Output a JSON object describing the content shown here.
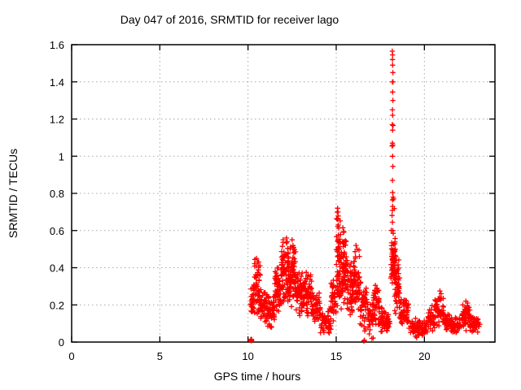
{
  "chart_data": {
    "type": "scatter",
    "title": "Day 047 of 2016, SRMTID for receiver lago",
    "xlabel": "GPS time / hours",
    "ylabel": "SRMTID / TECUs",
    "xlim": [
      0,
      24
    ],
    "ylim": [
      0,
      1.6
    ],
    "xticks": [
      [
        0,
        "0"
      ],
      [
        5,
        "5"
      ],
      [
        10,
        "10"
      ],
      [
        15,
        "15"
      ],
      [
        20,
        "20"
      ]
    ],
    "yticks": [
      [
        0,
        "0"
      ],
      [
        0.2,
        "0.2"
      ],
      [
        0.4,
        "0.4"
      ],
      [
        0.6,
        "0.6"
      ],
      [
        0.8,
        "0.8"
      ],
      [
        1,
        "1"
      ],
      [
        1.2,
        "1.2"
      ],
      [
        1.4,
        "1.4"
      ],
      [
        1.6,
        "1.6"
      ]
    ],
    "grid": true,
    "grid_color": "#a8a8a8",
    "border_color": "#000000",
    "legend_position": "none",
    "marker": {
      "shape": "plus",
      "color": "#ff0000",
      "size": 7
    },
    "data_time_range": [
      10.15,
      23.15
    ],
    "series": [
      {
        "name": "SRMTID",
        "color": "#ff0000",
        "envelope_bands_comment": "each band = [t_start_h, t_end_h, y_min_TECU, y_max_TECU, n_points] read from the scatter envelope",
        "envelope_bands": [
          [
            10.15,
            10.35,
            0.13,
            0.32,
            28
          ],
          [
            10.35,
            10.7,
            0.12,
            0.46,
            52
          ],
          [
            10.7,
            11.1,
            0.08,
            0.3,
            48
          ],
          [
            11.1,
            11.5,
            0.07,
            0.28,
            48
          ],
          [
            11.5,
            11.9,
            0.12,
            0.44,
            58
          ],
          [
            11.9,
            12.3,
            0.18,
            0.57,
            75
          ],
          [
            12.3,
            12.7,
            0.18,
            0.55,
            75
          ],
          [
            12.7,
            13.1,
            0.13,
            0.4,
            58
          ],
          [
            13.1,
            13.6,
            0.12,
            0.38,
            58
          ],
          [
            13.6,
            14.1,
            0.08,
            0.28,
            48
          ],
          [
            14.1,
            14.7,
            0.04,
            0.19,
            48
          ],
          [
            14.7,
            15.0,
            0.1,
            0.36,
            38
          ],
          [
            15.0,
            15.25,
            0.18,
            0.73,
            65
          ],
          [
            15.25,
            15.6,
            0.17,
            0.62,
            65
          ],
          [
            15.6,
            15.95,
            0.13,
            0.46,
            52
          ],
          [
            15.95,
            16.35,
            0.14,
            0.52,
            58
          ],
          [
            16.35,
            16.8,
            0.06,
            0.38,
            45
          ],
          [
            16.8,
            17.1,
            0.04,
            0.22,
            32
          ],
          [
            17.1,
            17.45,
            0.06,
            0.31,
            42
          ],
          [
            17.45,
            17.75,
            0.05,
            0.2,
            28
          ],
          [
            17.75,
            18.05,
            0.04,
            0.16,
            28
          ],
          [
            18.1,
            18.35,
            0.28,
            0.56,
            55
          ],
          [
            18.12,
            18.3,
            0.58,
            0.8,
            6
          ],
          [
            18.3,
            18.6,
            0.12,
            0.46,
            48
          ],
          [
            18.6,
            19.1,
            0.06,
            0.25,
            48
          ],
          [
            19.1,
            20.2,
            0.02,
            0.13,
            85
          ],
          [
            20.2,
            20.6,
            0.05,
            0.2,
            38
          ],
          [
            20.6,
            21.1,
            0.08,
            0.28,
            48
          ],
          [
            21.1,
            21.5,
            0.05,
            0.18,
            36
          ],
          [
            21.5,
            22.1,
            0.04,
            0.14,
            52
          ],
          [
            22.1,
            22.6,
            0.06,
            0.22,
            52
          ],
          [
            22.6,
            23.15,
            0.04,
            0.14,
            46
          ]
        ],
        "explicit_points_comment": "distinct readable points: start-blob at 10.18h on axis, near-zero points at 16.6h and 17.1h, the tall 18.2h spike up to 1.565 TECU, and local envelope maxima",
        "explicit_points": [
          [
            10.15,
            0.01
          ],
          [
            10.16,
            0.012
          ],
          [
            10.17,
            0.008
          ],
          [
            10.17,
            0.014
          ],
          [
            10.18,
            0.01
          ],
          [
            10.19,
            0.015
          ],
          [
            10.19,
            0.007
          ],
          [
            10.2,
            0.012
          ],
          [
            10.21,
            0.01
          ],
          [
            10.18,
            0.013
          ],
          [
            16.57,
            0.005
          ],
          [
            16.6,
            0.01
          ],
          [
            16.62,
            0.06
          ],
          [
            16.66,
            0.07
          ],
          [
            17.02,
            0.02
          ],
          [
            17.1,
            0.022
          ],
          [
            18.18,
            1.565
          ],
          [
            18.2,
            1.545
          ],
          [
            18.19,
            1.52
          ],
          [
            18.2,
            1.49
          ],
          [
            18.21,
            1.45
          ],
          [
            18.19,
            1.4
          ],
          [
            18.22,
            1.4
          ],
          [
            18.2,
            1.345
          ],
          [
            18.21,
            1.3
          ],
          [
            18.19,
            1.25
          ],
          [
            18.2,
            1.22
          ],
          [
            18.18,
            1.17
          ],
          [
            18.22,
            1.165
          ],
          [
            18.2,
            1.14
          ],
          [
            18.19,
            1.07
          ],
          [
            18.21,
            1.06
          ],
          [
            18.17,
            1.055
          ],
          [
            18.2,
            1.0
          ],
          [
            18.21,
            0.945
          ],
          [
            18.19,
            0.87
          ],
          [
            18.2,
            0.805
          ],
          [
            18.22,
            0.78
          ],
          [
            18.2,
            0.73
          ],
          [
            18.19,
            0.645
          ],
          [
            18.21,
            0.6
          ],
          [
            18.23,
            0.585
          ],
          [
            10.48,
            0.45
          ],
          [
            10.55,
            0.43
          ],
          [
            12.18,
            0.56
          ],
          [
            12.22,
            0.54
          ],
          [
            12.5,
            0.55
          ],
          [
            12.55,
            0.52
          ],
          [
            13.3,
            0.375
          ],
          [
            13.4,
            0.36
          ],
          [
            15.08,
            0.72
          ],
          [
            15.1,
            0.7
          ],
          [
            15.06,
            0.66
          ],
          [
            15.12,
            0.63
          ],
          [
            15.38,
            0.615
          ],
          [
            15.42,
            0.59
          ],
          [
            16.12,
            0.52
          ],
          [
            16.18,
            0.5
          ],
          [
            17.22,
            0.305
          ],
          [
            17.3,
            0.29
          ],
          [
            18.35,
            0.5
          ],
          [
            18.38,
            0.46
          ],
          [
            18.42,
            0.44
          ],
          [
            20.88,
            0.275
          ],
          [
            20.95,
            0.26
          ],
          [
            22.35,
            0.22
          ],
          [
            22.45,
            0.21
          ]
        ]
      }
    ]
  }
}
